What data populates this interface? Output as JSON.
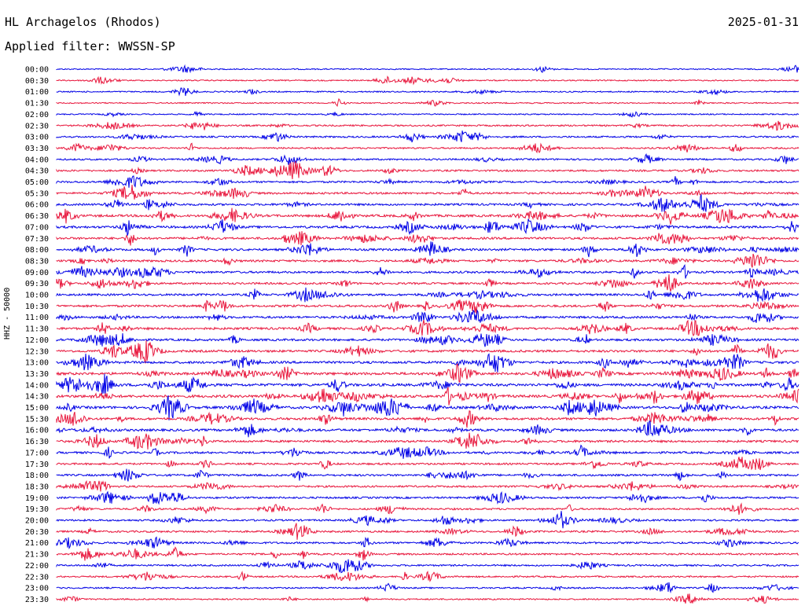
{
  "header": {
    "station": "HL Archagelos (Rhodos)",
    "date": "2025-01-31",
    "filter": "Applied filter: WWSSN-SP"
  },
  "channel_label": "HHZ - 50000",
  "chart_data": {
    "type": "line",
    "title": "HL Archagelos (Rhodos)",
    "subtitle": "Applied filter: WWSSN-SP",
    "ylabel": "HHZ - 50000",
    "rows": [
      "00:00",
      "00:30",
      "01:00",
      "01:30",
      "02:00",
      "02:30",
      "03:00",
      "03:30",
      "04:00",
      "04:30",
      "05:00",
      "05:30",
      "06:00",
      "06:30",
      "07:00",
      "07:30",
      "08:00",
      "08:30",
      "09:00",
      "09:30",
      "10:00",
      "10:30",
      "11:00",
      "11:30",
      "12:00",
      "12:30",
      "13:00",
      "13:30",
      "14:00",
      "14:30",
      "15:00",
      "15:30",
      "16:00",
      "16:30",
      "17:00",
      "17:30",
      "18:00",
      "18:30",
      "19:00",
      "19:30",
      "20:00",
      "20:30",
      "21:00",
      "21:30",
      "22:00",
      "22:30",
      "23:00",
      "23:30"
    ],
    "trace_minutes": 30,
    "activity": [
      0.08,
      0.12,
      0.15,
      0.1,
      0.12,
      0.3,
      0.35,
      0.3,
      0.35,
      0.4,
      0.45,
      0.5,
      0.55,
      0.7,
      0.65,
      0.6,
      0.6,
      0.55,
      0.55,
      0.5,
      0.55,
      0.6,
      0.6,
      0.65,
      0.6,
      0.65,
      0.7,
      0.8,
      0.85,
      0.85,
      0.8,
      0.7,
      0.7,
      0.6,
      0.55,
      0.45,
      0.5,
      0.45,
      0.45,
      0.4,
      0.4,
      0.45,
      0.45,
      0.4,
      0.35,
      0.3,
      0.25,
      0.2
    ],
    "colors": [
      "#0000e6",
      "#e8163c"
    ],
    "grid": false
  }
}
